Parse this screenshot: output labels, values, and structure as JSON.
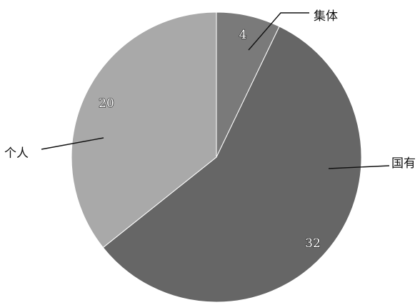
{
  "chart_data": {
    "type": "pie",
    "categories": [
      "集体",
      "国有",
      "个人"
    ],
    "values": [
      4,
      32,
      20
    ],
    "colors": [
      "#7a7a7a",
      "#666666",
      "#a9a9a9"
    ],
    "start": "12 o'clock",
    "direction": "clockwise",
    "labels": {
      "data": [
        "4",
        "32",
        "20"
      ],
      "category": [
        "集体",
        "国有",
        "个人"
      ]
    }
  }
}
